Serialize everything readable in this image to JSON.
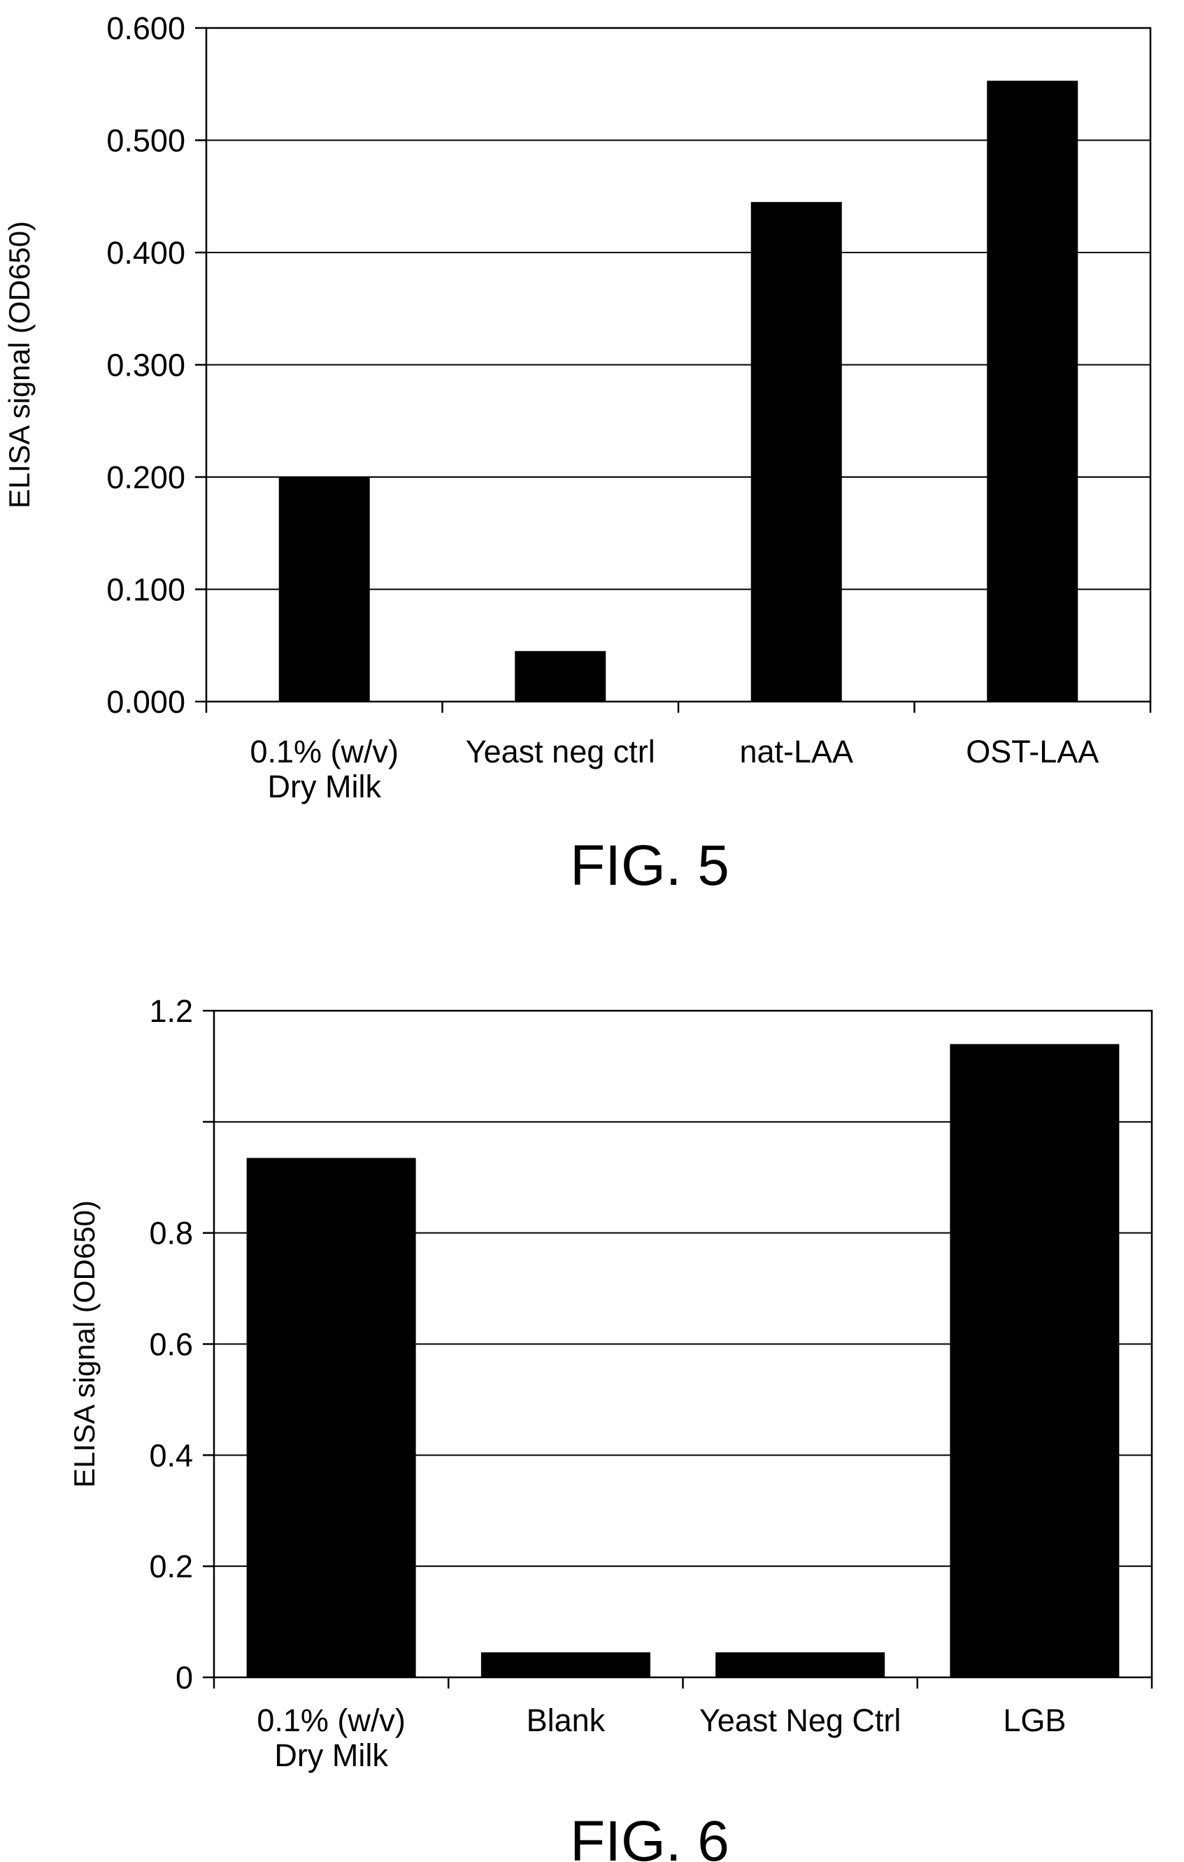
{
  "chart_data": [
    {
      "type": "bar",
      "figure_label": "FIG. 5",
      "ylabel": "ELISA signal (OD650)",
      "xlabel": "",
      "categories": [
        [
          "0.1% (w/v)",
          "Dry Milk"
        ],
        [
          "Yeast neg ctrl"
        ],
        [
          "nat-LAA"
        ],
        [
          "OST-LAA"
        ]
      ],
      "values": [
        0.2,
        0.045,
        0.445,
        0.553
      ],
      "ylim": [
        0,
        0.6
      ],
      "yticks": [
        0,
        0.1,
        0.2,
        0.3,
        0.4,
        0.5,
        0.6
      ],
      "ytick_labels": [
        "0.000",
        "0.100",
        "0.200",
        "0.300",
        "0.400",
        "0.500",
        "0.600"
      ],
      "grid": true,
      "bar_color": "#000000"
    },
    {
      "type": "bar",
      "figure_label": "FIG. 6",
      "ylabel": "ELISA signal (OD650)",
      "xlabel": "",
      "categories": [
        [
          "0.1% (w/v)",
          "Dry Milk"
        ],
        [
          "Blank"
        ],
        [
          "Yeast Neg Ctrl"
        ],
        [
          "LGB"
        ]
      ],
      "values": [
        0.935,
        0.045,
        0.045,
        1.14
      ],
      "ylim": [
        0,
        1.2
      ],
      "yticks": [
        0,
        0.2,
        0.4,
        0.6,
        0.8,
        1.0,
        1.2
      ],
      "ytick_labels": [
        "0",
        "0.2",
        "0.4",
        "0.6",
        "0.8",
        "",
        "1.2"
      ],
      "grid": true,
      "bar_color": "#000000"
    }
  ]
}
